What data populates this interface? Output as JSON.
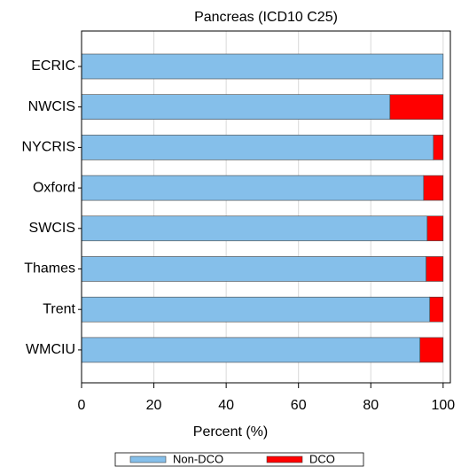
{
  "chart_data": {
    "type": "stacked-barh",
    "title": "Pancreas (ICD10 C25)",
    "xlabel": "Percent (%)",
    "categories": [
      "ECRIC",
      "NWCIS",
      "NYCRIS",
      "Oxford",
      "SWCIS",
      "Thames",
      "Trent",
      "WMCIU"
    ],
    "series": [
      {
        "name": "Non-DCO",
        "color": "#85bfea",
        "values": [
          100,
          85.3,
          97.3,
          94.6,
          95.6,
          95.3,
          96.3,
          93.6
        ]
      },
      {
        "name": "DCO",
        "color": "#ff0000",
        "values": [
          0,
          14.7,
          2.7,
          5.4,
          4.4,
          4.7,
          3.7,
          6.4
        ]
      }
    ],
    "xlim": [
      0,
      102
    ],
    "xticks": [
      0,
      20,
      40,
      60,
      80,
      100
    ],
    "grid": true
  }
}
